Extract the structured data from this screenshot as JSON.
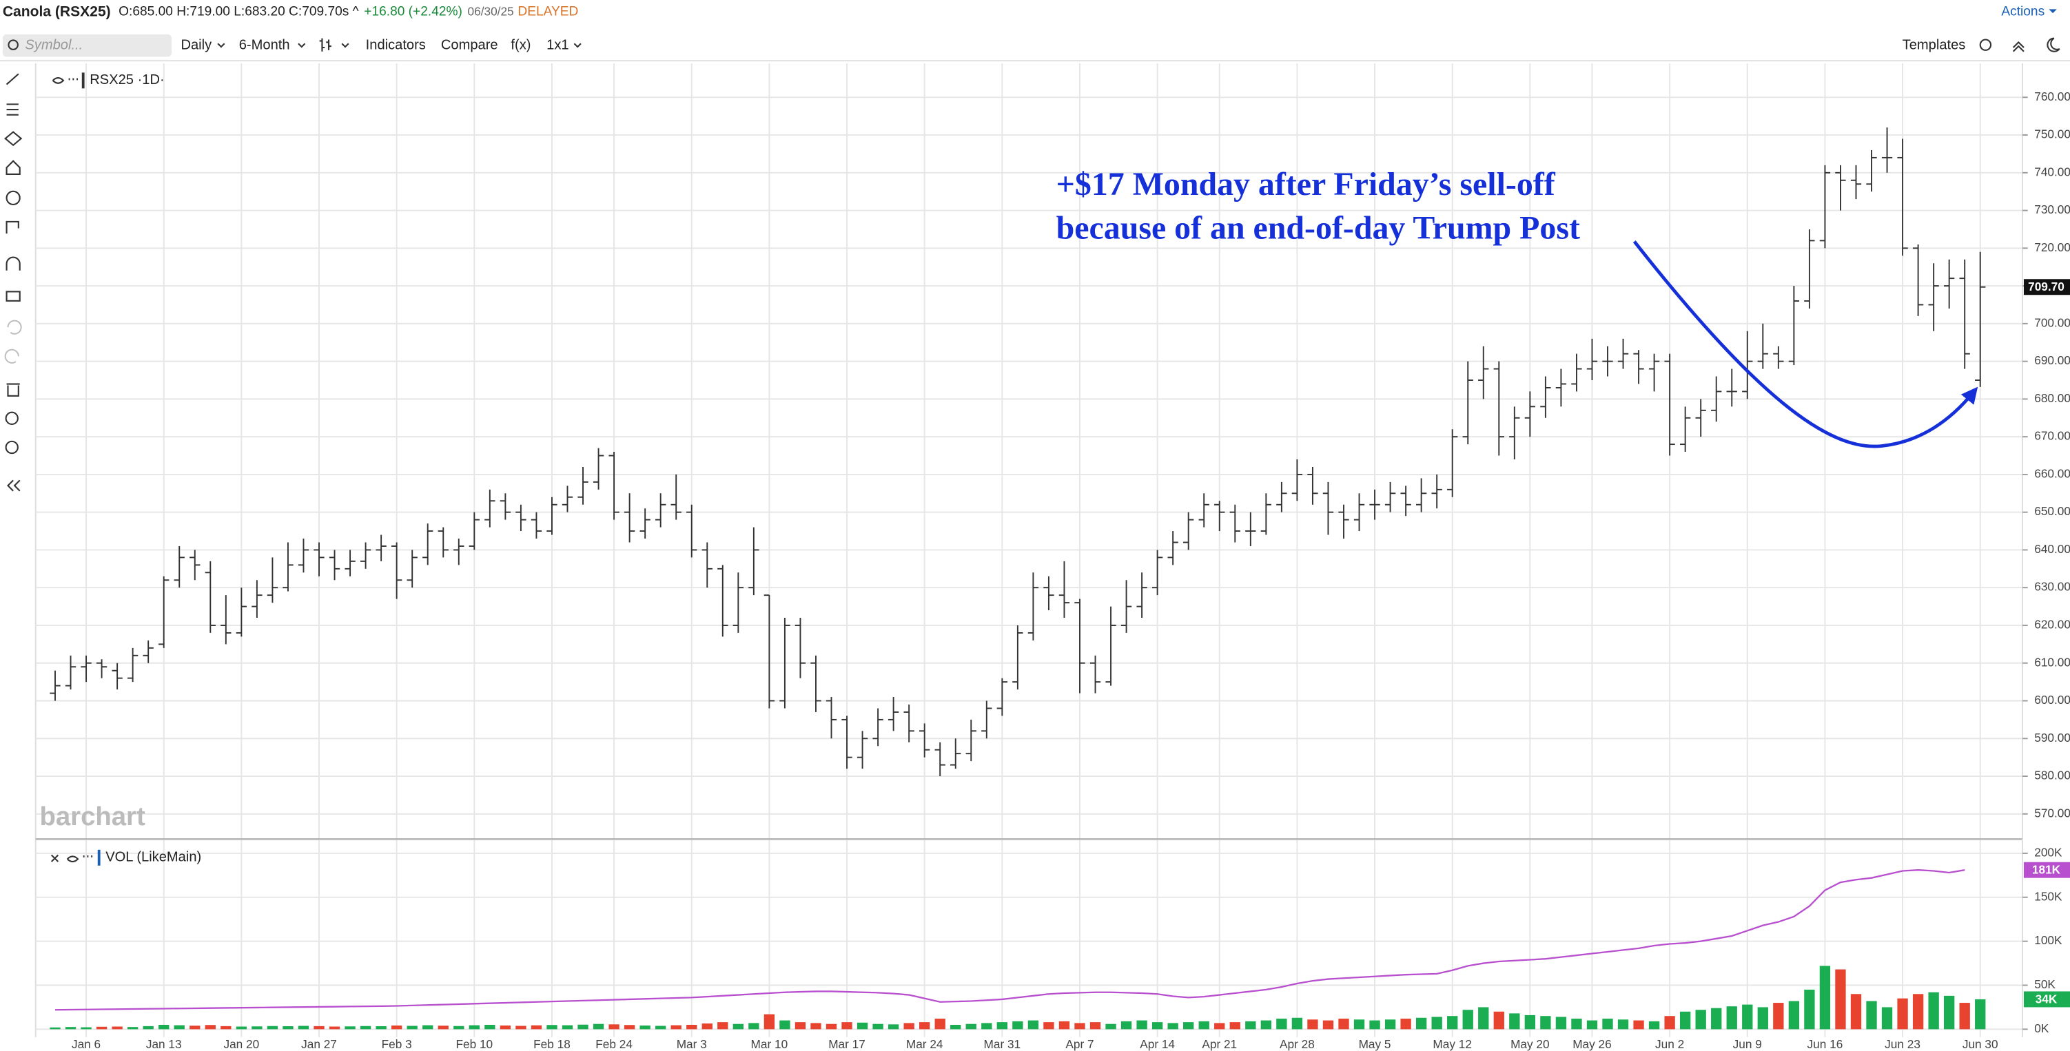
{
  "header": {
    "symbol": "Canola (RSX25)",
    "ohlc": "O:685.00 H:719.00 L:683.20 C:709.70s ^",
    "change": "+16.80 (+2.42%)",
    "date": "06/30/25",
    "status": "DELAYED",
    "actions": "Actions"
  },
  "toolbar": {
    "search": "Symbol...",
    "interval": "Daily",
    "range": "6-Month",
    "indicators": "Indicators",
    "compare": "Compare",
    "fx": "f(x)",
    "layout": "1x1",
    "templates": "Templates"
  },
  "watermark": "barchart",
  "chart_data": [
    {
      "type": "ohlc",
      "label": "RSX25 ·1D·",
      "color": "#333333",
      "grid": true,
      "annotation": [
        "+$17 Monday after Friday’s sell-off",
        "because of an end-of-day Trump Post"
      ],
      "last_label": "709.70",
      "categories": [
        null,
        null,
        "Jan 6",
        null,
        null,
        null,
        null,
        "Jan 13",
        null,
        null,
        null,
        null,
        "Jan 20",
        null,
        null,
        null,
        null,
        "Jan 27",
        null,
        null,
        null,
        null,
        "Feb 3",
        null,
        null,
        null,
        null,
        "Feb 10",
        null,
        null,
        null,
        null,
        "Feb 18",
        null,
        null,
        null,
        "Feb 24",
        null,
        null,
        null,
        null,
        "Mar 3",
        null,
        null,
        null,
        null,
        "Mar 10",
        null,
        null,
        null,
        null,
        "Mar 17",
        null,
        null,
        null,
        null,
        "Mar 24",
        null,
        null,
        null,
        null,
        "Mar 31",
        null,
        null,
        null,
        null,
        "Apr 7",
        null,
        null,
        null,
        null,
        "Apr 14",
        null,
        null,
        null,
        "Apr 21",
        null,
        null,
        null,
        null,
        "Apr 28",
        null,
        null,
        null,
        null,
        "May 5",
        null,
        null,
        null,
        null,
        "May 12",
        null,
        null,
        null,
        null,
        "May 20",
        null,
        null,
        null,
        "May 26",
        null,
        null,
        null,
        null,
        "Jun 2",
        null,
        null,
        null,
        null,
        "Jun 9",
        null,
        null,
        null,
        null,
        "Jun 16",
        null,
        null,
        null,
        null,
        "Jun 23",
        null,
        null,
        null,
        null,
        "Jun 30"
      ],
      "values": [
        [
          602,
          608,
          600,
          604
        ],
        [
          604,
          612,
          603,
          609
        ],
        [
          609,
          612,
          605,
          610
        ],
        [
          610,
          611,
          606,
          609
        ],
        [
          608,
          610,
          603,
          606
        ],
        [
          606,
          614,
          605,
          612
        ],
        [
          612,
          616,
          610,
          614
        ],
        [
          615,
          633,
          614,
          632
        ],
        [
          632,
          641,
          630,
          638
        ],
        [
          638,
          640,
          632,
          636
        ],
        [
          634,
          637,
          618,
          620
        ],
        [
          620,
          628,
          615,
          618
        ],
        [
          618,
          630,
          617,
          625
        ],
        [
          625,
          632,
          622,
          628
        ],
        [
          628,
          638,
          626,
          630
        ],
        [
          630,
          642,
          629,
          636
        ],
        [
          636,
          643,
          634,
          640
        ],
        [
          640,
          642,
          633,
          638
        ],
        [
          638,
          640,
          632,
          635
        ],
        [
          635,
          640,
          633,
          637
        ],
        [
          637,
          642,
          635,
          640
        ],
        [
          640,
          644,
          637,
          641
        ],
        [
          641,
          642,
          627,
          632
        ],
        [
          632,
          640,
          630,
          638
        ],
        [
          638,
          647,
          636,
          645
        ],
        [
          645,
          646,
          638,
          640
        ],
        [
          640,
          643,
          636,
          641
        ],
        [
          641,
          650,
          640,
          648
        ],
        [
          648,
          656,
          646,
          653
        ],
        [
          653,
          655,
          648,
          650
        ],
        [
          650,
          652,
          645,
          648
        ],
        [
          648,
          650,
          643,
          645
        ],
        [
          645,
          654,
          644,
          652
        ],
        [
          652,
          657,
          650,
          654
        ],
        [
          654,
          662,
          652,
          658
        ],
        [
          658,
          667,
          656,
          665
        ],
        [
          665,
          666,
          648,
          650
        ],
        [
          650,
          655,
          642,
          645
        ],
        [
          645,
          651,
          643,
          648
        ],
        [
          648,
          655,
          646,
          652
        ],
        [
          652,
          660,
          648,
          650
        ],
        [
          650,
          652,
          638,
          640
        ],
        [
          640,
          642,
          630,
          635
        ],
        [
          635,
          636,
          617,
          620
        ],
        [
          620,
          634,
          618,
          630
        ],
        [
          630,
          646,
          628,
          640
        ],
        [
          628,
          628,
          598,
          600
        ],
        [
          600,
          622,
          598,
          620
        ],
        [
          620,
          622,
          606,
          610
        ],
        [
          610,
          612,
          597,
          600
        ],
        [
          600,
          601,
          590,
          595
        ],
        [
          595,
          596,
          582,
          585
        ],
        [
          585,
          592,
          582,
          590
        ],
        [
          590,
          598,
          588,
          595
        ],
        [
          595,
          601,
          592,
          597
        ],
        [
          597,
          599,
          589,
          592
        ],
        [
          592,
          594,
          585,
          587
        ],
        [
          587,
          589,
          580,
          583
        ],
        [
          583,
          590,
          582,
          586
        ],
        [
          586,
          595,
          584,
          592
        ],
        [
          592,
          600,
          590,
          598
        ],
        [
          598,
          606,
          596,
          605
        ],
        [
          605,
          620,
          603,
          618
        ],
        [
          618,
          634,
          616,
          630
        ],
        [
          630,
          633,
          624,
          628
        ],
        [
          628,
          637,
          622,
          626
        ],
        [
          626,
          627,
          602,
          610
        ],
        [
          610,
          612,
          602,
          605
        ],
        [
          605,
          625,
          604,
          620
        ],
        [
          620,
          632,
          618,
          625
        ],
        [
          625,
          634,
          622,
          630
        ],
        [
          630,
          640,
          628,
          638
        ],
        [
          638,
          645,
          636,
          642
        ],
        [
          642,
          650,
          640,
          648
        ],
        [
          648,
          655,
          646,
          652
        ],
        [
          652,
          653,
          645,
          650
        ],
        [
          650,
          652,
          642,
          645
        ],
        [
          645,
          650,
          641,
          645
        ],
        [
          645,
          655,
          644,
          652
        ],
        [
          652,
          658,
          650,
          655
        ],
        [
          655,
          664,
          653,
          660
        ],
        [
          660,
          662,
          652,
          655
        ],
        [
          655,
          658,
          644,
          650
        ],
        [
          650,
          652,
          643,
          648
        ],
        [
          648,
          655,
          645,
          652
        ],
        [
          652,
          656,
          648,
          652
        ],
        [
          652,
          658,
          650,
          655
        ],
        [
          655,
          657,
          649,
          652
        ],
        [
          652,
          659,
          650,
          655
        ],
        [
          655,
          660,
          651,
          656
        ],
        [
          656,
          672,
          654,
          670
        ],
        [
          670,
          690,
          668,
          685
        ],
        [
          685,
          694,
          680,
          688
        ],
        [
          688,
          690,
          665,
          670
        ],
        [
          670,
          678,
          664,
          675
        ],
        [
          675,
          682,
          670,
          678
        ],
        [
          678,
          686,
          675,
          683
        ],
        [
          683,
          688,
          678,
          684
        ],
        [
          684,
          692,
          682,
          688
        ],
        [
          688,
          696,
          685,
          690
        ],
        [
          690,
          694,
          686,
          690
        ],
        [
          690,
          696,
          688,
          692
        ],
        [
          692,
          693,
          684,
          688
        ],
        [
          688,
          692,
          682,
          690
        ],
        [
          690,
          692,
          665,
          668
        ],
        [
          668,
          678,
          666,
          675
        ],
        [
          675,
          680,
          670,
          677
        ],
        [
          677,
          686,
          674,
          682
        ],
        [
          682,
          688,
          678,
          682
        ],
        [
          682,
          698,
          680,
          690
        ],
        [
          690,
          700,
          688,
          692
        ],
        [
          692,
          694,
          688,
          690
        ],
        [
          690,
          710,
          689,
          706
        ],
        [
          706,
          725,
          704,
          722
        ],
        [
          722,
          742,
          720,
          740
        ],
        [
          740,
          742,
          730,
          738
        ],
        [
          738,
          742,
          733,
          737
        ],
        [
          737,
          746,
          735,
          744
        ],
        [
          744,
          752,
          740,
          744
        ],
        [
          744,
          749,
          718,
          720
        ],
        [
          720,
          721,
          702,
          705
        ],
        [
          705,
          716,
          698,
          710
        ],
        [
          710,
          717,
          704,
          712
        ],
        [
          712,
          717,
          688,
          692
        ],
        [
          685,
          719,
          683.2,
          709.7
        ]
      ],
      "ylim": [
        564,
        769
      ],
      "yticks": [
        {
          "value": 570,
          "label": "570.00"
        },
        {
          "value": 580,
          "label": "580.00"
        },
        {
          "value": 590,
          "label": "590.00"
        },
        {
          "value": 600,
          "label": "600.00"
        },
        {
          "value": 610,
          "label": "610.00"
        },
        {
          "value": 620,
          "label": "620.00"
        },
        {
          "value": 630,
          "label": "630.00"
        },
        {
          "value": 640,
          "label": "640.00"
        },
        {
          "value": 650,
          "label": "650.00"
        },
        {
          "value": 660,
          "label": "660.00"
        },
        {
          "value": 670,
          "label": "670.00"
        },
        {
          "value": 680,
          "label": "680.00"
        },
        {
          "value": 690,
          "label": "690.00"
        },
        {
          "value": 700,
          "label": "700.00"
        },
        {
          "value": 710,
          "label": "710.00"
        },
        {
          "value": 720,
          "label": "720.00"
        },
        {
          "value": 730,
          "label": "730.00"
        },
        {
          "value": 740,
          "label": "740.00"
        },
        {
          "value": 750,
          "label": "750.00"
        },
        {
          "value": 760,
          "label": "760.00"
        }
      ]
    },
    {
      "type": "bar",
      "label": "VOL (LikeMain)",
      "grid": true,
      "up_color": "#1aad52",
      "down_color": "#e8432f",
      "badges": [
        "181K",
        "34K"
      ],
      "series": [
        {
          "values": [
            2000,
            2500,
            2200,
            2800,
            3000,
            2500,
            3500,
            5000,
            4500,
            4000,
            4800,
            3500,
            3000,
            3200,
            3600,
            3400,
            3800,
            3500,
            3000,
            3200,
            3600,
            3400,
            4200,
            3800,
            4500,
            4000,
            3600,
            4500,
            5000,
            4200,
            3800,
            4400,
            4800,
            4500,
            5200,
            6000,
            5500,
            4800,
            4200,
            3800,
            4500,
            5000,
            6500,
            8000,
            6000,
            7000,
            17000,
            10000,
            8000,
            7000,
            6000,
            8000,
            7500,
            6000,
            5500,
            7000,
            8000,
            12000,
            5000,
            6000,
            7000,
            8000,
            9000,
            10000,
            8000,
            9000,
            7000,
            8000,
            6000,
            9000,
            10000,
            8000,
            7000,
            8000,
            9000,
            7000,
            8000,
            9000,
            10000,
            12000,
            13000,
            11000,
            10000,
            12000,
            11000,
            10000,
            11000,
            12000,
            13000,
            14000,
            15000,
            22000,
            25000,
            20000,
            18000,
            16000,
            15000,
            14000,
            12000,
            10000,
            12000,
            11000,
            10000,
            9000,
            15000,
            20000,
            22000,
            24000,
            26000,
            28000,
            25000,
            30000,
            32000,
            45000,
            72000,
            68000,
            40000,
            32000,
            25000,
            35000,
            40000,
            42000,
            38000,
            30000,
            34000
          ]
        },
        {
          "color": "#b84fcf",
          "values": [
            22000,
            22200,
            22400,
            22600,
            22800,
            23000,
            23200,
            23400,
            23600,
            23800,
            24000,
            24200,
            24400,
            24600,
            24800,
            25000,
            25200,
            25400,
            25600,
            25800,
            26000,
            26200,
            26500,
            27000,
            27500,
            28000,
            28500,
            29000,
            29500,
            30000,
            30500,
            31000,
            31500,
            32000,
            32500,
            33000,
            33500,
            34000,
            34500,
            35000,
            35500,
            36000,
            37000,
            38000,
            39000,
            40000,
            41000,
            42000,
            42500,
            43000,
            43000,
            42500,
            42000,
            41500,
            40500,
            39000,
            35000,
            31000,
            31500,
            32000,
            33000,
            34000,
            36000,
            38000,
            40000,
            41000,
            41500,
            42000,
            42000,
            41500,
            41000,
            40000,
            37500,
            36000,
            37000,
            39000,
            41000,
            43000,
            45000,
            48000,
            52000,
            55000,
            57000,
            58000,
            59000,
            60000,
            61000,
            62000,
            62500,
            63000,
            67000,
            72000,
            75000,
            77000,
            78000,
            79000,
            80000,
            82000,
            84000,
            86000,
            88000,
            90000,
            92000,
            95000,
            97000,
            98000,
            100000,
            103000,
            106000,
            112000,
            118000,
            122000,
            128000,
            140000,
            158000,
            167000,
            170000,
            172000,
            176000,
            180000,
            181000,
            180000,
            178000,
            181000,
            null
          ]
        }
      ],
      "ylim": [
        -9000,
        210000
      ],
      "yticks": [
        {
          "value": 0,
          "label": "0K"
        },
        {
          "value": 50000,
          "label": "50K"
        },
        {
          "value": 100000,
          "label": "100K"
        },
        {
          "value": 150000,
          "label": "150K"
        },
        {
          "value": 200000,
          "label": "200K"
        }
      ]
    }
  ]
}
